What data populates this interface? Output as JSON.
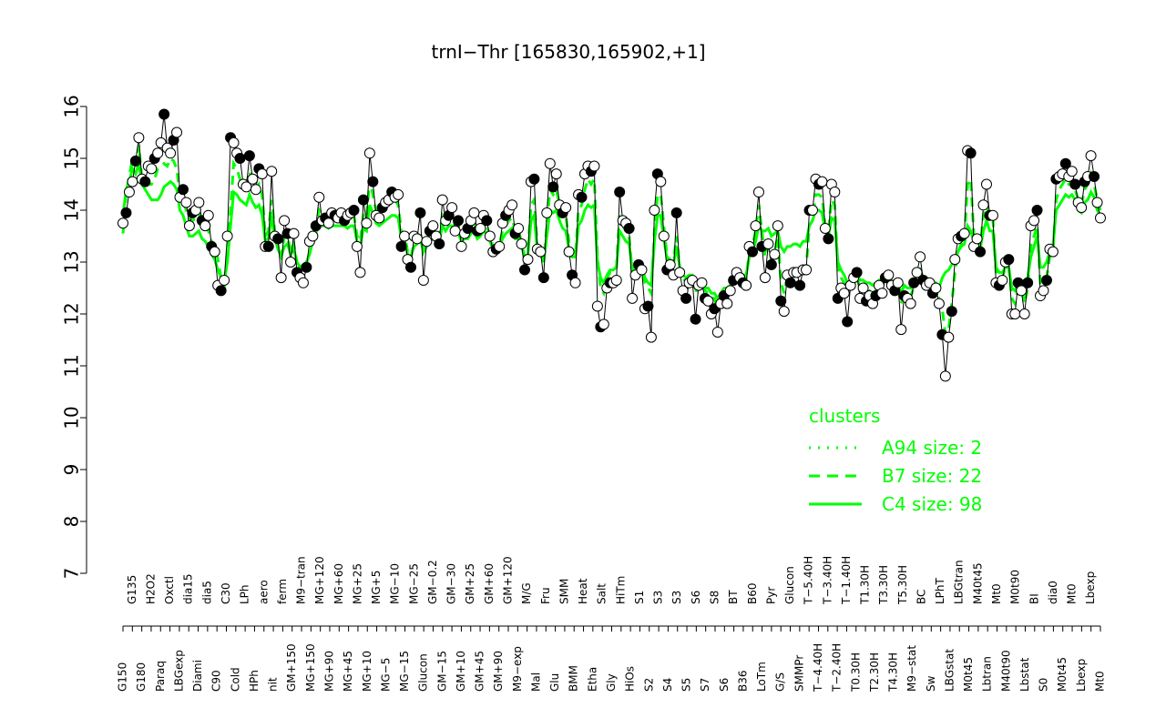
{
  "chart_data": {
    "type": "line",
    "title": "trnI−Thr [165830,165902,+1]",
    "xlabel": "",
    "ylabel": "",
    "ylim": [
      7,
      16
    ],
    "yticks": [
      7,
      8,
      9,
      10,
      11,
      12,
      13,
      14,
      15,
      16
    ],
    "xtick_labels": [
      "G150",
      "G135",
      "G180",
      "H2O2",
      "Paraq",
      "Oxctl",
      "LBGexp",
      "dia15",
      "Diami",
      "dia5",
      "C90",
      "C30",
      "Cold",
      "LPh",
      "HPh",
      "aero",
      "nit",
      "ferm",
      "GM+150",
      "M9−tran",
      "MG+150",
      "MG+120",
      "MG+90",
      "MG+60",
      "MG+45",
      "MG+25",
      "MG+10",
      "MG+5",
      "MG−5",
      "MG−10",
      "MG−15",
      "MG−25",
      "Glucon",
      "GM−0.2",
      "GM−15",
      "GM−30",
      "GM+10",
      "GM+25",
      "GM+45",
      "GM+60",
      "GM+90",
      "GM+120",
      "M9−exp",
      "M/G",
      "Mal",
      "Fru",
      "Glu",
      "SMM",
      "BMM",
      "Heat",
      "Etha",
      "Salt",
      "Gly",
      "HiTm",
      "HiOs",
      "S1",
      "S2",
      "S3",
      "S4",
      "S3",
      "S5",
      "S6",
      "S7",
      "S8",
      "S6",
      "BT",
      "B36",
      "B60",
      "LoTm",
      "Pyr",
      "G/S",
      "Glucon",
      "SMMPr",
      "T−5.40H",
      "T−4.40H",
      "T−3.40H",
      "T−2.40H",
      "T−1.40H",
      "T0.30H",
      "T1.30H",
      "T2.30H",
      "T3.30H",
      "T4.30H",
      "T5.30H",
      "M9−stat",
      "BC",
      "Sw",
      "LPhT",
      "LBGstat",
      "LBGtran",
      "M0t45",
      "M40t45",
      "Lbtran",
      "Mt0",
      "M40t90",
      "M0t90",
      "Lbstat",
      "BI",
      "S0",
      "dia0",
      "M0t45",
      "Mt0",
      "Lbexp",
      "Lbexp",
      "Mt0"
    ],
    "series": [
      {
        "values": [
          13.75,
          13.95,
          14.35,
          14.55,
          14.95,
          15.4,
          14.6,
          14.55,
          14.85,
          14.8,
          15.0,
          15.1,
          15.3,
          15.85,
          15.2,
          15.1,
          15.35,
          15.5,
          14.25,
          14.4,
          14.15,
          13.7,
          13.95,
          14.0,
          14.15,
          13.8,
          13.7,
          13.9,
          13.3,
          13.2,
          12.55,
          12.45,
          12.65,
          13.5,
          15.4,
          15.3,
          15.1,
          15.0,
          14.5,
          14.45,
          15.05,
          14.6,
          14.4,
          14.8,
          14.7,
          13.3,
          13.3,
          14.75,
          13.5,
          13.45,
          12.7,
          13.8,
          13.55,
          13.0,
          13.55,
          12.8,
          12.7,
          12.6,
          12.9,
          13.4,
          13.5,
          13.7,
          14.25,
          13.8,
          13.85,
          13.75,
          13.95,
          13.9,
          13.85,
          13.95,
          13.8,
          13.9,
          13.95,
          14.0,
          13.3,
          12.8,
          14.2,
          13.75,
          15.1,
          14.55,
          13.9,
          13.85,
          14.05,
          14.15,
          14.2,
          14.35,
          14.25,
          14.3,
          13.3,
          13.5,
          13.05,
          12.9,
          13.5,
          13.45,
          13.95,
          12.65,
          13.4,
          13.6,
          13.7,
          13.5,
          13.35,
          14.2,
          13.8,
          13.9,
          14.05,
          13.6,
          13.8,
          13.3,
          13.55,
          13.65,
          13.8,
          13.95,
          13.6,
          13.65,
          13.9,
          13.8,
          13.5,
          13.2,
          13.25,
          13.3,
          13.75,
          13.9,
          14.0,
          14.1,
          13.55,
          13.65,
          13.35,
          12.85,
          13.05,
          14.55,
          14.6,
          13.25,
          13.2,
          12.7,
          13.95,
          14.9,
          14.45,
          14.7,
          14.1,
          13.95,
          14.05,
          13.2,
          12.75,
          12.6,
          14.3,
          14.25,
          14.7,
          14.85,
          14.75,
          14.85,
          12.15,
          11.75,
          11.8,
          12.5,
          12.6,
          12.6,
          12.65,
          14.35,
          13.8,
          13.75,
          13.65,
          12.3,
          12.75,
          12.95,
          12.85,
          12.1,
          12.15,
          11.55,
          14.0,
          14.7,
          14.55,
          13.5,
          12.85,
          12.95,
          12.75,
          13.95,
          12.8,
          12.45,
          12.3,
          12.6,
          12.65,
          11.9,
          12.55,
          12.6,
          12.3,
          12.25,
          12.0,
          12.1,
          11.65,
          12.2,
          12.35,
          12.2,
          12.45,
          12.65,
          12.8,
          12.7,
          12.6,
          12.55,
          13.3,
          13.2,
          13.7,
          14.35,
          13.3,
          12.7,
          13.35,
          12.95,
          13.15,
          13.7,
          12.25,
          12.05,
          12.75,
          12.6,
          12.8,
          12.8,
          12.55,
          12.85,
          12.85,
          14.0,
          14.0,
          14.6,
          14.5,
          14.55,
          13.65,
          13.45,
          14.5,
          14.35,
          12.3,
          12.5,
          12.4,
          11.85,
          12.55,
          12.7,
          12.8,
          12.3,
          12.5,
          12.25,
          12.35,
          12.2,
          12.35,
          12.55,
          12.4,
          12.7,
          12.75,
          12.55,
          12.45,
          12.6,
          11.7,
          12.35,
          12.3,
          12.2,
          12.6,
          12.8,
          13.1,
          12.65,
          12.55,
          12.6,
          12.4,
          12.5,
          12.2,
          11.6,
          10.8,
          11.55,
          12.05,
          13.05,
          13.45,
          13.5,
          13.55,
          15.15,
          15.1,
          13.3,
          13.45,
          13.2,
          14.1,
          14.5,
          13.9,
          13.9,
          12.6,
          12.55,
          12.65,
          13.0,
          13.05,
          12.0,
          12.0,
          12.6,
          12.45,
          12.0,
          12.6,
          13.7,
          13.8,
          14.0,
          12.35,
          12.45,
          12.65,
          13.25,
          13.2,
          14.6,
          14.65,
          14.7,
          14.9,
          14.65,
          14.75,
          14.5,
          14.15,
          14.05,
          14.55,
          14.65,
          15.05,
          14.65,
          14.15,
          13.85
        ]
      },
      {
        "values": [
          13.55,
          14.35,
          14.65,
          15.0,
          14.9,
          15.25,
          14.6,
          14.5,
          14.5,
          14.5,
          14.6,
          14.8,
          14.85,
          14.9,
          14.85,
          15.0,
          14.95,
          14.8,
          14.3,
          14.2,
          14.0,
          13.8,
          13.8,
          13.85,
          13.95,
          13.75,
          13.7,
          13.6,
          13.4,
          13.35,
          13.05,
          12.7,
          12.5,
          13.1,
          14.0,
          14.9,
          14.8,
          14.6,
          14.5,
          14.5,
          14.75,
          14.5,
          14.4,
          14.5,
          14.3,
          13.5,
          13.6,
          14.2,
          13.6,
          13.3,
          13.1,
          13.5,
          13.5,
          13.2,
          13.35,
          13.0,
          12.8,
          12.9,
          12.95,
          13.2,
          13.55,
          13.7,
          14.0,
          13.9,
          13.9,
          13.85,
          13.9,
          13.9,
          13.9,
          13.9,
          13.9,
          13.85,
          13.9,
          13.9,
          13.5,
          13.4,
          13.9,
          13.85,
          14.6,
          14.3,
          14.0,
          13.95,
          14.0,
          14.05,
          14.1,
          14.2,
          14.2,
          14.1,
          13.6,
          13.55,
          13.2,
          13.1,
          13.35,
          13.45,
          13.6,
          13.2,
          13.35,
          13.55,
          13.6,
          13.5,
          13.5,
          13.9,
          13.8,
          13.9,
          13.9,
          13.7,
          13.7,
          13.5,
          13.6,
          13.6,
          13.7,
          13.75,
          13.6,
          13.65,
          13.75,
          13.7,
          13.5,
          13.3,
          13.3,
          13.35,
          13.6,
          13.7,
          13.8,
          13.85,
          13.6,
          13.6,
          13.4,
          13.1,
          13.2,
          14.1,
          14.2,
          13.3,
          13.2,
          13.0,
          13.7,
          14.4,
          14.3,
          14.4,
          14.1,
          13.9,
          13.9,
          13.4,
          13.1,
          13.1,
          14.0,
          14.1,
          14.4,
          14.6,
          14.5,
          14.6,
          13.1,
          12.5,
          12.4,
          12.7,
          12.8,
          12.8,
          12.9,
          13.9,
          13.7,
          13.6,
          13.5,
          12.8,
          12.85,
          13.0,
          12.9,
          12.6,
          12.5,
          12.4,
          13.6,
          14.3,
          14.3,
          13.7,
          13.1,
          13.05,
          13.0,
          13.5,
          12.9,
          12.7,
          12.6,
          12.7,
          12.7,
          12.4,
          12.6,
          12.6,
          12.45,
          12.4,
          12.3,
          12.3,
          12.1,
          12.3,
          12.4,
          12.4,
          12.5,
          12.7,
          12.8,
          12.8,
          12.7,
          12.7,
          13.2,
          13.3,
          13.6,
          14.1,
          13.6,
          13.1,
          13.3,
          13.05,
          13.2,
          13.5,
          12.6,
          12.4,
          12.7,
          12.7,
          12.8,
          12.8,
          12.75,
          12.9,
          12.9,
          13.7,
          13.8,
          14.3,
          14.3,
          14.25,
          13.7,
          13.6,
          14.2,
          14.1,
          12.9,
          12.7,
          12.6,
          12.45,
          12.55,
          12.6,
          12.7,
          12.5,
          12.5,
          12.4,
          12.45,
          12.4,
          12.45,
          12.5,
          12.5,
          12.6,
          12.6,
          12.5,
          12.5,
          12.5,
          12.2,
          12.4,
          12.4,
          12.35,
          12.5,
          12.6,
          12.8,
          12.65,
          12.6,
          12.6,
          12.5,
          12.5,
          12.3,
          12.1,
          11.6,
          11.7,
          12.2,
          12.8,
          13.2,
          13.35,
          13.45,
          14.5,
          14.6,
          13.5,
          13.45,
          13.3,
          13.9,
          14.1,
          13.9,
          13.85,
          12.8,
          12.7,
          12.7,
          12.9,
          12.9,
          12.3,
          12.2,
          12.5,
          12.5,
          12.2,
          12.5,
          13.3,
          13.5,
          13.7,
          12.6,
          12.6,
          12.7,
          13.1,
          13.2,
          14.2,
          14.4,
          14.5,
          14.6,
          14.5,
          14.55,
          14.4,
          14.2,
          14.1,
          14.4,
          14.5,
          14.7,
          14.5,
          14.2,
          14.0
        ]
      },
      {
        "values": [
          13.9,
          14.4,
          14.55,
          14.8,
          14.7,
          14.9,
          14.5,
          14.4,
          14.3,
          14.2,
          14.2,
          14.2,
          14.3,
          14.45,
          14.5,
          14.55,
          14.5,
          14.4,
          14.0,
          13.9,
          13.7,
          13.5,
          13.5,
          13.55,
          13.6,
          13.45,
          13.4,
          13.3,
          13.15,
          13.05,
          12.85,
          12.7,
          12.65,
          13.0,
          13.7,
          14.35,
          14.3,
          14.2,
          14.15,
          14.1,
          14.3,
          14.15,
          14.05,
          14.1,
          13.9,
          13.4,
          13.45,
          13.9,
          13.45,
          13.25,
          13.1,
          13.3,
          13.35,
          13.15,
          13.25,
          13.0,
          12.9,
          12.95,
          13.0,
          13.15,
          13.4,
          13.55,
          13.75,
          13.7,
          13.7,
          13.65,
          13.7,
          13.7,
          13.7,
          13.7,
          13.7,
          13.65,
          13.7,
          13.7,
          13.4,
          13.3,
          13.65,
          13.6,
          14.1,
          13.95,
          13.75,
          13.7,
          13.75,
          13.8,
          13.85,
          13.9,
          13.9,
          13.85,
          13.45,
          13.4,
          13.15,
          13.1,
          13.3,
          13.35,
          13.45,
          13.2,
          13.3,
          13.4,
          13.45,
          13.4,
          13.4,
          13.7,
          13.6,
          13.7,
          13.7,
          13.55,
          13.55,
          13.4,
          13.45,
          13.45,
          13.55,
          13.6,
          13.45,
          13.5,
          13.6,
          13.55,
          13.4,
          13.25,
          13.25,
          13.3,
          13.45,
          13.55,
          13.6,
          13.65,
          13.45,
          13.45,
          13.3,
          13.1,
          13.15,
          13.8,
          13.9,
          13.2,
          13.15,
          13.0,
          13.5,
          14.0,
          13.95,
          14.0,
          13.8,
          13.65,
          13.6,
          13.25,
          13.1,
          13.1,
          13.7,
          13.8,
          14.0,
          14.1,
          14.05,
          14.1,
          13.0,
          12.7,
          12.6,
          12.75,
          12.85,
          12.85,
          12.9,
          13.6,
          13.5,
          13.4,
          13.35,
          12.85,
          12.9,
          13.0,
          12.95,
          12.7,
          12.6,
          12.55,
          13.4,
          13.9,
          13.9,
          13.45,
          13.05,
          13.0,
          12.95,
          13.3,
          12.9,
          12.75,
          12.7,
          12.75,
          12.75,
          12.5,
          12.6,
          12.6,
          12.5,
          12.5,
          12.4,
          12.4,
          12.3,
          12.4,
          12.5,
          12.5,
          12.55,
          12.7,
          12.8,
          12.8,
          12.75,
          12.75,
          13.1,
          13.2,
          13.4,
          13.7,
          13.6,
          13.6,
          13.65,
          13.5,
          13.55,
          13.6,
          13.3,
          13.2,
          13.3,
          13.3,
          13.35,
          13.35,
          13.3,
          13.4,
          13.4,
          13.7,
          13.8,
          14.0,
          14.0,
          13.95,
          13.6,
          13.5,
          13.85,
          13.8,
          13.0,
          12.85,
          12.75,
          12.6,
          12.65,
          12.7,
          12.8,
          12.65,
          12.65,
          12.6,
          12.6,
          12.55,
          12.6,
          12.65,
          12.65,
          12.7,
          12.7,
          12.65,
          12.6,
          12.6,
          12.4,
          12.55,
          12.5,
          12.5,
          12.6,
          12.7,
          12.85,
          12.7,
          12.65,
          12.65,
          12.6,
          12.6,
          12.5,
          12.7,
          12.8,
          12.85,
          12.95,
          13.0,
          13.2,
          13.3,
          13.35,
          13.7,
          13.6,
          13.4,
          13.3,
          13.25,
          13.6,
          13.8,
          13.6,
          13.6,
          12.9,
          12.8,
          12.8,
          12.9,
          12.9,
          12.5,
          12.45,
          12.6,
          12.6,
          12.5,
          12.7,
          13.1,
          13.3,
          13.5,
          12.9,
          12.9,
          13.0,
          13.2,
          13.3,
          14.0,
          14.1,
          14.2,
          14.3,
          14.25,
          14.3,
          14.2,
          14.0,
          13.95,
          14.15,
          14.2,
          14.35,
          14.25,
          14.0,
          13.9
        ]
      }
    ],
    "legend": {
      "title": "clusters",
      "position": "right",
      "entries": [
        {
          "label": "A94 size: 2",
          "style": "dotted"
        },
        {
          "label": "B7 size: 22",
          "style": "dashed"
        },
        {
          "label": "C4 size: 98",
          "style": "solid"
        }
      ]
    },
    "colors": {
      "series": "#000000",
      "cluster": "#00ff00",
      "axis": "#000000",
      "background": "#ffffff"
    }
  }
}
